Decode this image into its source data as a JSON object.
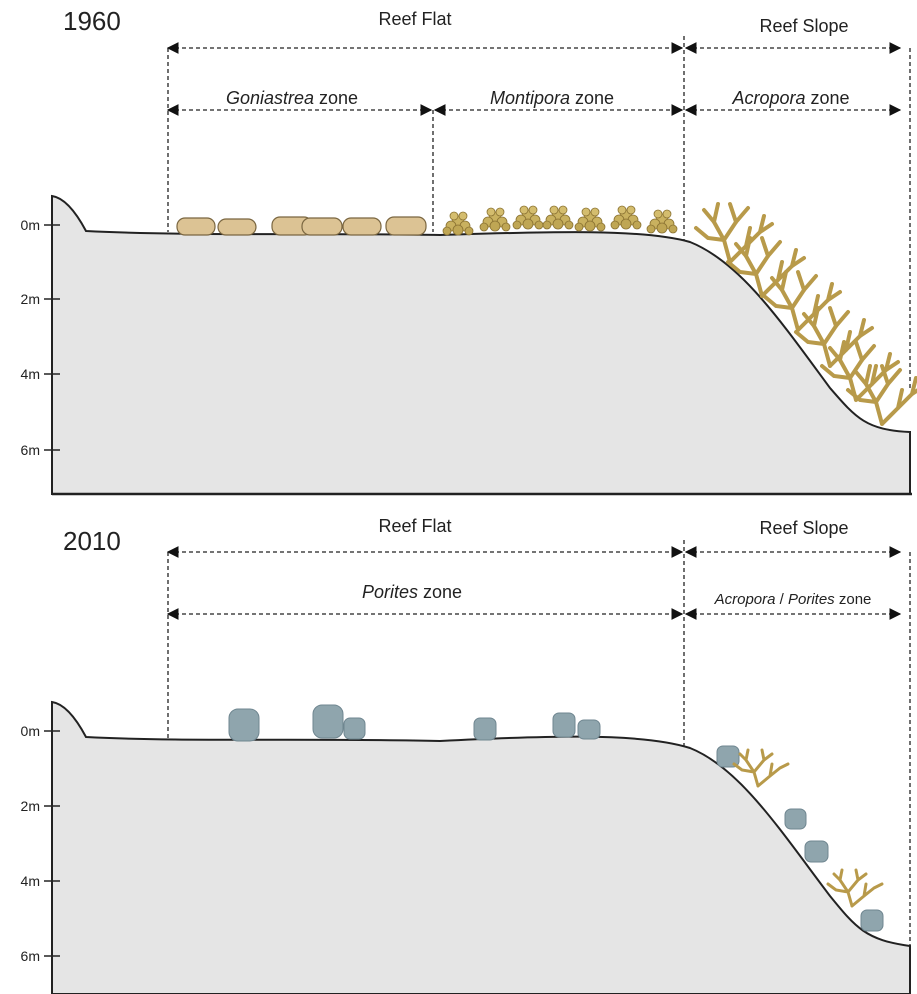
{
  "panels": [
    {
      "year": "1960",
      "regions": [
        {
          "label": "Reef Flat"
        },
        {
          "label": "Reef Slope"
        }
      ],
      "zones": [
        {
          "italic": "Goniastrea",
          "rest": " zone"
        },
        {
          "italic": "Montipora",
          "rest": " zone"
        },
        {
          "italic": "Acropora",
          "rest": " zone"
        }
      ],
      "depths": [
        "0m",
        "2m",
        "4m",
        "6m"
      ]
    },
    {
      "year": "2010",
      "regions": [
        {
          "label": "Reef Flat"
        },
        {
          "label": "Reef Slope"
        }
      ],
      "zones": [
        {
          "italic": "Porites",
          "rest": " zone"
        },
        {
          "italic": "Acropora",
          "mid": " / ",
          "italic2": "Porites",
          "rest": " zone"
        }
      ],
      "depths": [
        "0m",
        "2m",
        "4m",
        "6m"
      ]
    }
  ],
  "colors": {
    "reef_fill": "#e5e5e5",
    "goniastrea": "#dcc394",
    "montipora": "#c9b15f",
    "acropora": "#b89a4a",
    "porites": "#8fa5ad"
  }
}
